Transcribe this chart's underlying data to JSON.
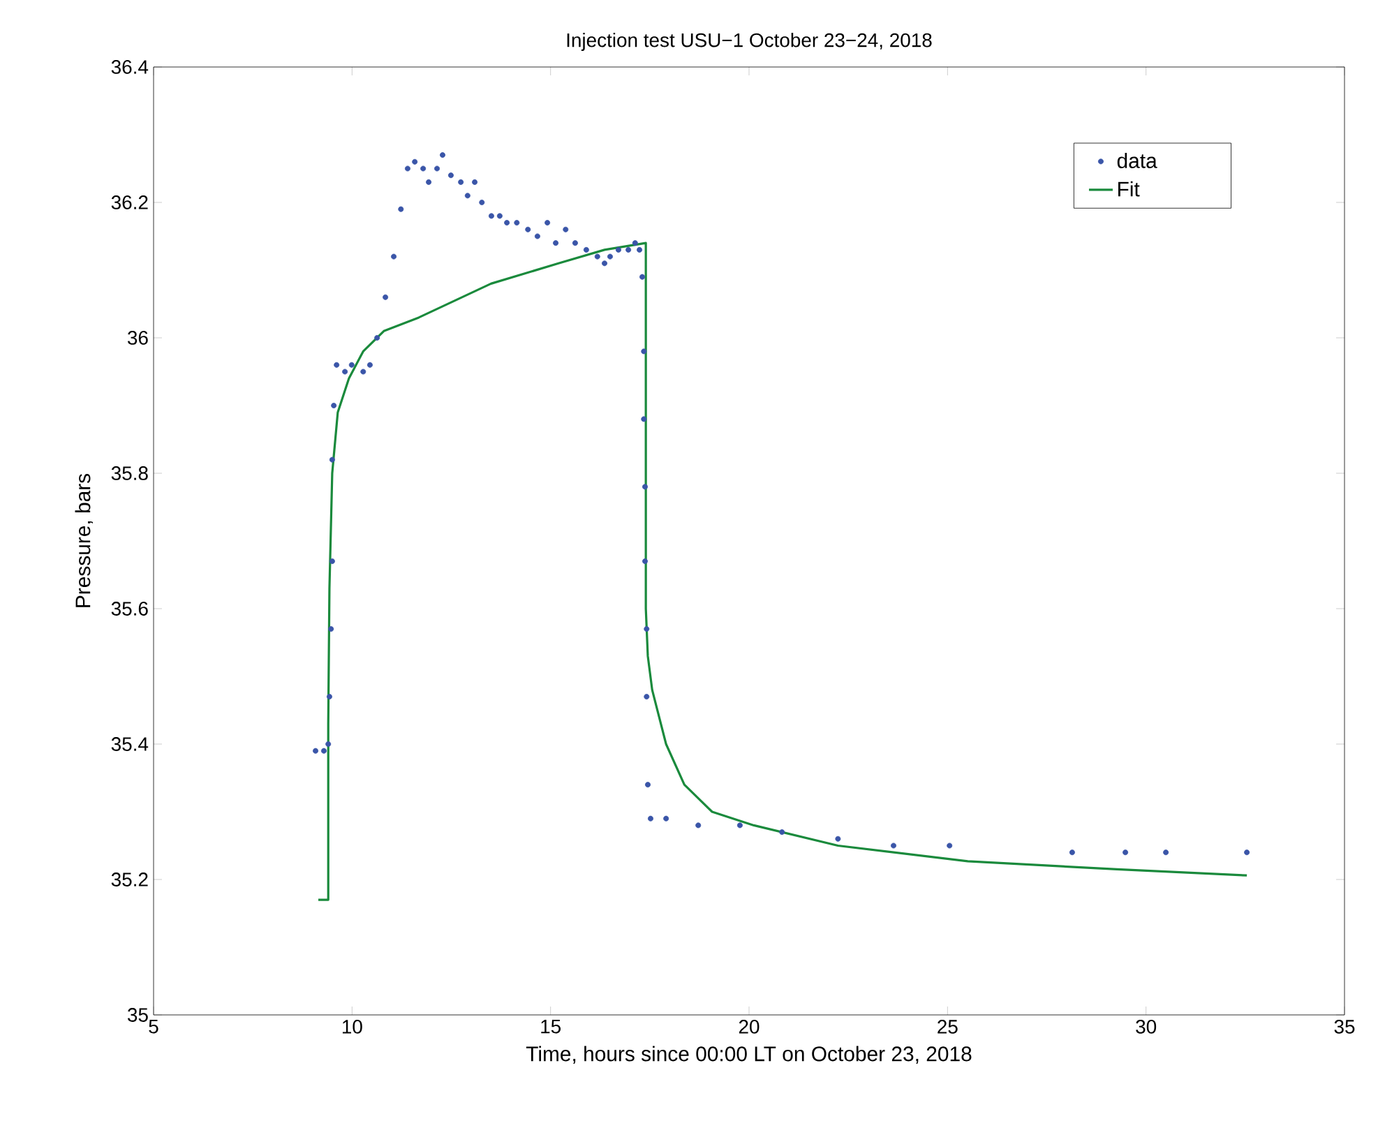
{
  "chart_data": {
    "type": "scatter",
    "title": "Injection test USU−1 October 23−24, 2018",
    "xlabel": "Time, hours since 00:00 LT on October 23, 2018",
    "ylabel": "Pressure, bars",
    "xlim": [
      5,
      35
    ],
    "ylim": [
      35,
      36.4
    ],
    "xticks": [
      5,
      10,
      15,
      20,
      25,
      30,
      35
    ],
    "yticks": [
      35,
      35.2,
      35.4,
      35.6,
      35.8,
      36,
      36.2,
      36.4
    ],
    "grid": false,
    "legend": "top right",
    "series": [
      {
        "name": "data",
        "type": "scatter",
        "color": "#3a55a8",
        "x": [
          9.08,
          9.29,
          9.4,
          9.43,
          9.47,
          9.5,
          9.5,
          9.54,
          9.61,
          9.82,
          9.99,
          10.28,
          10.45,
          10.63,
          10.84,
          11.05,
          11.23,
          11.4,
          11.58,
          11.79,
          11.93,
          12.14,
          12.28,
          12.49,
          12.74,
          12.91,
          13.09,
          13.27,
          13.51,
          13.72,
          13.9,
          14.15,
          14.43,
          14.67,
          14.92,
          15.13,
          15.38,
          15.62,
          15.9,
          16.18,
          16.36,
          16.5,
          16.71,
          16.96,
          17.13,
          17.24,
          17.31,
          17.35,
          17.35,
          17.38,
          17.38,
          17.42,
          17.42,
          17.45,
          17.52,
          17.91,
          18.72,
          19.77,
          20.83,
          22.24,
          23.64,
          25.05,
          28.14,
          29.48,
          30.5,
          32.54
        ],
        "values": [
          35.39,
          35.39,
          35.4,
          35.47,
          35.57,
          35.67,
          35.82,
          35.9,
          35.96,
          35.95,
          35.96,
          35.95,
          35.96,
          36.0,
          36.06,
          36.12,
          36.19,
          36.25,
          36.26,
          36.25,
          36.23,
          36.25,
          36.27,
          36.24,
          36.23,
          36.21,
          36.23,
          36.2,
          36.18,
          36.18,
          36.17,
          36.17,
          36.16,
          36.15,
          36.17,
          36.14,
          36.16,
          36.14,
          36.13,
          36.12,
          36.11,
          36.12,
          36.13,
          36.13,
          36.14,
          36.13,
          36.09,
          35.98,
          35.88,
          35.78,
          35.67,
          35.57,
          35.47,
          35.34,
          35.29,
          35.29,
          35.28,
          35.28,
          35.27,
          35.26,
          35.25,
          35.25,
          35.24,
          35.24,
          35.24,
          35.24
        ]
      },
      {
        "name": "Fit",
        "type": "line",
        "color": "#1a8a3c",
        "x": [
          9.15,
          9.4,
          9.4,
          9.43,
          9.5,
          9.64,
          9.92,
          10.28,
          10.8,
          11.68,
          13.5,
          15.2,
          16.36,
          17.4,
          17.4,
          17.45,
          17.56,
          17.91,
          18.37,
          19.07,
          20.12,
          22.24,
          25.51,
          29.27,
          32.54
        ],
        "values": [
          35.17,
          35.17,
          35.43,
          35.63,
          35.8,
          35.89,
          35.94,
          35.98,
          36.01,
          36.03,
          36.08,
          36.11,
          36.13,
          36.14,
          35.6,
          35.53,
          35.48,
          35.4,
          35.34,
          35.3,
          35.28,
          35.25,
          35.227,
          35.215,
          35.206
        ]
      }
    ]
  }
}
